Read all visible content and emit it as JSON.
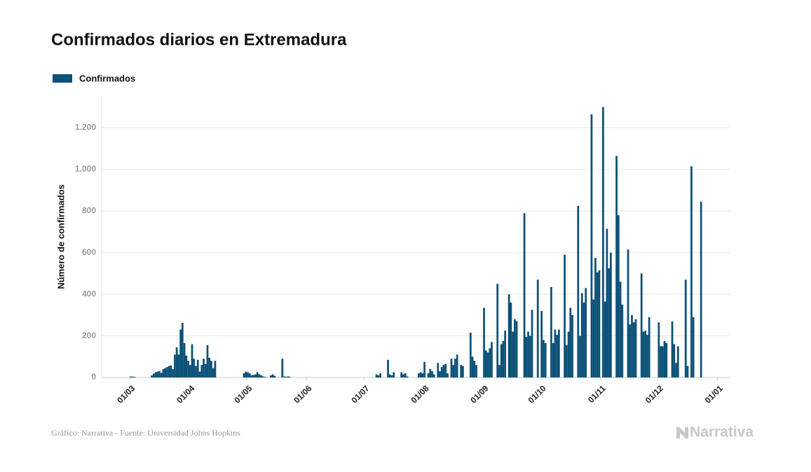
{
  "chart_data": {
    "type": "bar",
    "title": "Confirmados diarios en Extremadura",
    "y_label": "Número de confirmados",
    "source": "Gráfico: Narrativa - Fuente: Universidad Johns Hopkins",
    "logo_text": "Narrativa",
    "categories": [
      "01/03",
      null,
      null,
      null,
      null,
      null,
      null,
      null,
      null,
      null,
      null,
      null,
      null,
      null,
      null,
      null,
      null,
      null,
      null,
      null,
      null,
      null,
      null,
      null,
      null,
      null,
      null,
      null,
      null,
      null,
      null,
      "01/04",
      null,
      null,
      null,
      null,
      null,
      null,
      null,
      null,
      null,
      null,
      null,
      null,
      null,
      null,
      null,
      null,
      null,
      null,
      null,
      null,
      null,
      null,
      null,
      null,
      null,
      null,
      null,
      null,
      null,
      "01/05",
      null,
      null,
      null,
      null,
      null,
      null,
      null,
      null,
      null,
      null,
      null,
      null,
      null,
      null,
      null,
      null,
      null,
      null,
      null,
      null,
      null,
      null,
      null,
      null,
      null,
      null,
      null,
      null,
      null,
      null,
      "01/06",
      null,
      null,
      null,
      null,
      null,
      null,
      null,
      null,
      null,
      null,
      null,
      null,
      null,
      null,
      null,
      null,
      null,
      null,
      null,
      null,
      null,
      null,
      null,
      null,
      null,
      null,
      null,
      null,
      null,
      "01/07",
      null,
      null,
      null,
      null,
      null,
      null,
      null,
      null,
      null,
      null,
      null,
      null,
      null,
      null,
      null,
      null,
      null,
      null,
      null,
      null,
      null,
      null,
      null,
      null,
      null,
      null,
      null,
      null,
      null,
      null,
      "01/08",
      null,
      null,
      null,
      null,
      null,
      null,
      null,
      null,
      null,
      null,
      null,
      null,
      null,
      null,
      null,
      null,
      null,
      null,
      null,
      null,
      null,
      null,
      null,
      null,
      null,
      null,
      null,
      null,
      null,
      null,
      "01/09",
      null,
      null,
      null,
      null,
      null,
      null,
      null,
      null,
      null,
      null,
      null,
      null,
      null,
      null,
      null,
      null,
      null,
      null,
      null,
      null,
      null,
      null,
      null,
      null,
      null,
      null,
      null,
      null,
      null,
      "01/10",
      null,
      null,
      null,
      null,
      null,
      null,
      null,
      null,
      null,
      null,
      null,
      null,
      null,
      null,
      null,
      null,
      null,
      null,
      null,
      null,
      null,
      null,
      null,
      null,
      null,
      null,
      null,
      null,
      null,
      null,
      "01/11",
      null,
      null,
      null,
      null,
      null,
      null,
      null,
      null,
      null,
      null,
      null,
      null,
      null,
      null,
      null,
      null,
      null,
      null,
      null,
      null,
      null,
      null,
      null,
      null,
      null,
      null,
      null,
      null,
      null,
      "01/12",
      null,
      null,
      null,
      null,
      null,
      null,
      null,
      null,
      null,
      null,
      null,
      null,
      null,
      null,
      null,
      null,
      null,
      null,
      null,
      null,
      null,
      null,
      null,
      null,
      null,
      null,
      null,
      null,
      null,
      null,
      "01/01"
    ],
    "series": [
      {
        "name": "Confirmados",
        "color": "#0b5077",
        "values": [
          5,
          4,
          3,
          0,
          0,
          0,
          0,
          0,
          0,
          0,
          0,
          10,
          18,
          25,
          28,
          30,
          22,
          40,
          45,
          50,
          55,
          58,
          40,
          110,
          145,
          110,
          230,
          262,
          165,
          105,
          80,
          60,
          160,
          90,
          55,
          85,
          28,
          60,
          90,
          65,
          155,
          95,
          80,
          45,
          80,
          0,
          0,
          0,
          0,
          0,
          0,
          0,
          0,
          0,
          0,
          0,
          0,
          0,
          0,
          20,
          28,
          25,
          20,
          10,
          12,
          15,
          25,
          15,
          10,
          5,
          3,
          0,
          0,
          10,
          15,
          8,
          0,
          0,
          0,
          90,
          5,
          3,
          5,
          3,
          0,
          0,
          0,
          0,
          0,
          0,
          0,
          0,
          0,
          0,
          0,
          0,
          0,
          0,
          0,
          0,
          0,
          0,
          0,
          0,
          0,
          0,
          0,
          0,
          0,
          0,
          0,
          0,
          0,
          0,
          0,
          0,
          0,
          0,
          0,
          0,
          0,
          0,
          0,
          0,
          0,
          0,
          0,
          0,
          15,
          10,
          20,
          0,
          0,
          0,
          85,
          15,
          10,
          25,
          0,
          0,
          0,
          25,
          15,
          20,
          5,
          0,
          0,
          0,
          0,
          0,
          20,
          25,
          20,
          75,
          0,
          20,
          40,
          30,
          15,
          0,
          70,
          30,
          50,
          60,
          65,
          20,
          0,
          90,
          60,
          90,
          110,
          0,
          60,
          55,
          0,
          0,
          0,
          215,
          100,
          80,
          60,
          0,
          0,
          0,
          335,
          130,
          120,
          140,
          170,
          0,
          0,
          450,
          60,
          160,
          175,
          225,
          0,
          400,
          360,
          220,
          280,
          270,
          0,
          0,
          0,
          790,
          195,
          220,
          200,
          325,
          0,
          0,
          470,
          0,
          320,
          180,
          165,
          0,
          0,
          435,
          165,
          230,
          205,
          230,
          0,
          0,
          590,
          155,
          220,
          335,
          300,
          0,
          0,
          825,
          200,
          405,
          360,
          430,
          0,
          0,
          1265,
          375,
          575,
          505,
          515,
          0,
          1300,
          365,
          715,
          525,
          600,
          0,
          0,
          1065,
          780,
          460,
          350,
          0,
          0,
          615,
          255,
          300,
          265,
          280,
          0,
          0,
          500,
          220,
          225,
          205,
          290,
          0,
          0,
          0,
          0,
          265,
          150,
          150,
          175,
          165,
          0,
          0,
          270,
          160,
          70,
          150,
          0,
          0,
          0,
          470,
          55,
          0,
          1015,
          290,
          0,
          0,
          0,
          845,
          0,
          0,
          0,
          0,
          0,
          0,
          0,
          0,
          null
        ]
      }
    ],
    "ylim": [
      0,
      1350
    ],
    "yticks": [
      0,
      200,
      400,
      600,
      800,
      {
        "value": 1000,
        "label": "1.000"
      },
      {
        "value": 1200,
        "label": "1.200"
      }
    ],
    "grid": true
  }
}
